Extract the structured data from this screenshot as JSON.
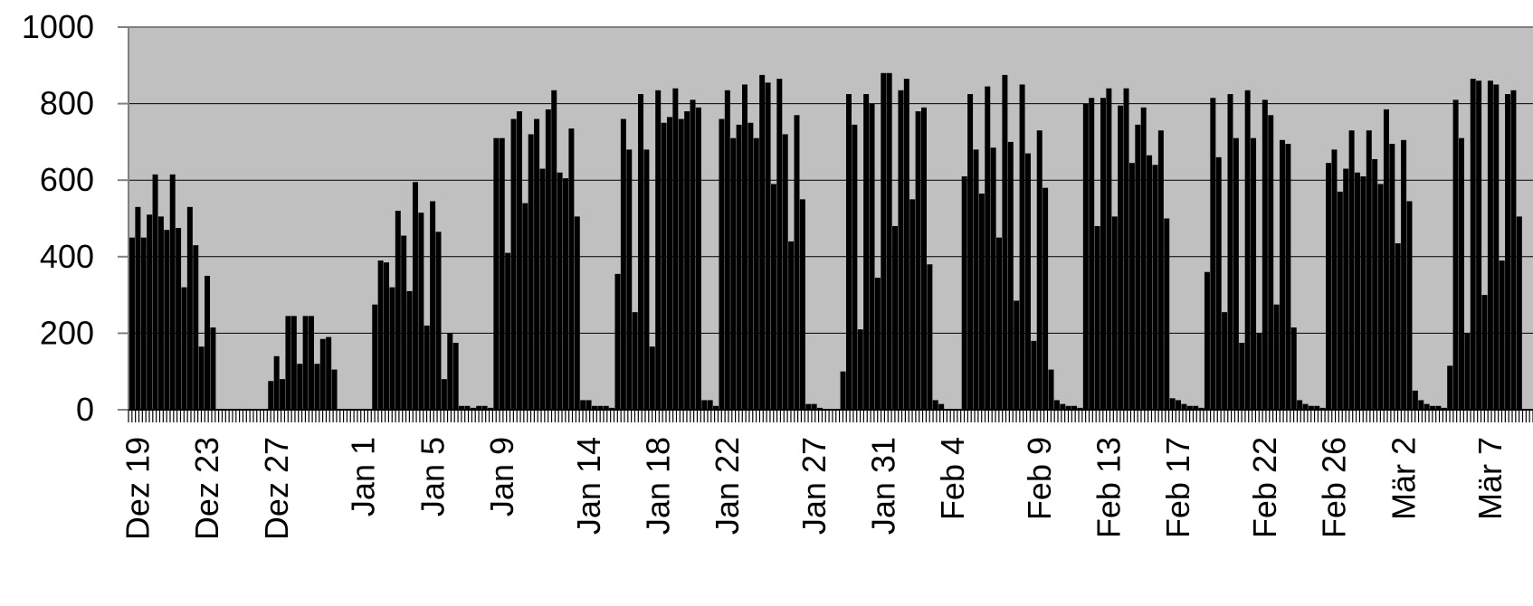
{
  "chart_data": {
    "type": "bar",
    "title": "",
    "xlabel": "",
    "ylabel": "",
    "ylim": [
      0,
      1000
    ],
    "yticks": [
      0,
      200,
      400,
      600,
      800,
      1000
    ],
    "grid": true,
    "legend": "none",
    "colors": {
      "plot_bg": "#c0c0c0",
      "bar": "#000000",
      "grid": "#000000",
      "axis": "#808080"
    },
    "x_tick_labels": [
      "Dez 19",
      "Dez 23",
      "Dez 27",
      "Jan 1",
      "Jan 5",
      "Jan 9",
      "Jan 14",
      "Jan 18",
      "Jan 22",
      "Jan 27",
      "Jan 31",
      "Feb 4",
      "Feb 9",
      "Feb 13",
      "Feb 17",
      "Feb 22",
      "Feb 26",
      "Mär 2",
      "Mär 7"
    ],
    "x_range": [
      "Dez 19",
      "Mär 9"
    ],
    "days": [
      {
        "date": "Dez 19",
        "peaks": [
          450,
          530,
          450
        ]
      },
      {
        "date": "Dez 20",
        "peaks": [
          510,
          615,
          505
        ]
      },
      {
        "date": "Dez 21",
        "peaks": [
          470,
          615,
          475
        ]
      },
      {
        "date": "Dez 22",
        "peaks": [
          320,
          530,
          430
        ]
      },
      {
        "date": "Dez 23",
        "peaks": [
          165,
          350,
          215
        ]
      },
      {
        "date": "Dez 24",
        "peaks": [
          0,
          0,
          0
        ]
      },
      {
        "date": "Dez 25",
        "peaks": [
          0,
          0,
          0
        ]
      },
      {
        "date": "Dez 26",
        "peaks": [
          0,
          0,
          0
        ]
      },
      {
        "date": "Dez 27",
        "peaks": [
          75,
          140,
          80
        ]
      },
      {
        "date": "Dez 28",
        "peaks": [
          245,
          245,
          120
        ]
      },
      {
        "date": "Dez 29",
        "peaks": [
          245,
          245,
          120
        ]
      },
      {
        "date": "Dez 30",
        "peaks": [
          185,
          190,
          105
        ]
      },
      {
        "date": "Dez 31",
        "peaks": [
          0,
          0,
          0
        ]
      },
      {
        "date": "Jan 1",
        "peaks": [
          0,
          0,
          0
        ]
      },
      {
        "date": "Jan 2",
        "peaks": [
          275,
          390,
          385
        ]
      },
      {
        "date": "Jan 3",
        "peaks": [
          320,
          520,
          455
        ]
      },
      {
        "date": "Jan 4",
        "peaks": [
          310,
          595,
          515
        ]
      },
      {
        "date": "Jan 5",
        "peaks": [
          220,
          545,
          465
        ]
      },
      {
        "date": "Jan 6",
        "peaks": [
          80,
          200,
          175
        ]
      },
      {
        "date": "Jan 7",
        "peaks": [
          10,
          10,
          5
        ]
      },
      {
        "date": "Jan 8",
        "peaks": [
          10,
          10,
          5
        ]
      },
      {
        "date": "Jan 9",
        "peaks": [
          710,
          710,
          410
        ]
      },
      {
        "date": "Jan 10",
        "peaks": [
          760,
          780,
          540
        ]
      },
      {
        "date": "Jan 11",
        "peaks": [
          720,
          760,
          630
        ]
      },
      {
        "date": "Jan 12",
        "peaks": [
          785,
          835,
          620
        ]
      },
      {
        "date": "Jan 13",
        "peaks": [
          605,
          735,
          505
        ]
      },
      {
        "date": "Jan 14",
        "peaks": [
          25,
          25,
          10
        ]
      },
      {
        "date": "Jan 15",
        "peaks": [
          10,
          10,
          5
        ]
      },
      {
        "date": "Jan 16",
        "peaks": [
          355,
          760,
          680
        ]
      },
      {
        "date": "Jan 17",
        "peaks": [
          255,
          825,
          680
        ]
      },
      {
        "date": "Jan 18",
        "peaks": [
          165,
          835,
          750
        ]
      },
      {
        "date": "Jan 19",
        "peaks": [
          765,
          840,
          760
        ]
      },
      {
        "date": "Jan 20",
        "peaks": [
          780,
          810,
          790
        ]
      },
      {
        "date": "Jan 21",
        "peaks": [
          25,
          25,
          10
        ]
      },
      {
        "date": "Jan 22",
        "peaks": [
          760,
          835,
          710
        ]
      },
      {
        "date": "Jan 23",
        "peaks": [
          745,
          850,
          750
        ]
      },
      {
        "date": "Jan 24",
        "peaks": [
          710,
          875,
          855
        ]
      },
      {
        "date": "Jan 25",
        "peaks": [
          590,
          865,
          720
        ]
      },
      {
        "date": "Jan 26",
        "peaks": [
          440,
          770,
          550
        ]
      },
      {
        "date": "Jan 27",
        "peaks": [
          15,
          15,
          5
        ]
      },
      {
        "date": "Jan 28",
        "peaks": [
          0,
          0,
          0
        ]
      },
      {
        "date": "Jan 29",
        "peaks": [
          100,
          825,
          745
        ]
      },
      {
        "date": "Jan 30",
        "peaks": [
          210,
          825,
          800
        ]
      },
      {
        "date": "Jan 31",
        "peaks": [
          345,
          880,
          880
        ]
      },
      {
        "date": "Feb 1",
        "peaks": [
          480,
          835,
          865
        ]
      },
      {
        "date": "Feb 2",
        "peaks": [
          550,
          780,
          790
        ]
      },
      {
        "date": "Feb 3",
        "peaks": [
          380,
          25,
          15
        ]
      },
      {
        "date": "Feb 4",
        "peaks": [
          0,
          0,
          0
        ]
      },
      {
        "date": "Feb 5",
        "peaks": [
          610,
          825,
          680
        ]
      },
      {
        "date": "Feb 6",
        "peaks": [
          565,
          845,
          685
        ]
      },
      {
        "date": "Feb 7",
        "peaks": [
          450,
          875,
          700
        ]
      },
      {
        "date": "Feb 8",
        "peaks": [
          285,
          850,
          670
        ]
      },
      {
        "date": "Feb 9",
        "peaks": [
          180,
          730,
          580
        ]
      },
      {
        "date": "Feb 10",
        "peaks": [
          105,
          25,
          15
        ]
      },
      {
        "date": "Feb 11",
        "peaks": [
          10,
          10,
          5
        ]
      },
      {
        "date": "Feb 12",
        "peaks": [
          800,
          815,
          480
        ]
      },
      {
        "date": "Feb 13",
        "peaks": [
          815,
          840,
          505
        ]
      },
      {
        "date": "Feb 14",
        "peaks": [
          795,
          840,
          645
        ]
      },
      {
        "date": "Feb 15",
        "peaks": [
          745,
          790,
          665
        ]
      },
      {
        "date": "Feb 16",
        "peaks": [
          640,
          730,
          500
        ]
      },
      {
        "date": "Feb 17",
        "peaks": [
          30,
          25,
          15
        ]
      },
      {
        "date": "Feb 18",
        "peaks": [
          10,
          10,
          5
        ]
      },
      {
        "date": "Feb 19",
        "peaks": [
          360,
          815,
          660
        ]
      },
      {
        "date": "Feb 20",
        "peaks": [
          255,
          825,
          710
        ]
      },
      {
        "date": "Feb 21",
        "peaks": [
          175,
          835,
          710
        ]
      },
      {
        "date": "Feb 22",
        "peaks": [
          200,
          810,
          770
        ]
      },
      {
        "date": "Feb 23",
        "peaks": [
          275,
          705,
          695
        ]
      },
      {
        "date": "Feb 24",
        "peaks": [
          215,
          25,
          15
        ]
      },
      {
        "date": "Feb 25",
        "peaks": [
          10,
          10,
          5
        ]
      },
      {
        "date": "Feb 26",
        "peaks": [
          645,
          680,
          570
        ]
      },
      {
        "date": "Feb 27",
        "peaks": [
          630,
          730,
          620
        ]
      },
      {
        "date": "Feb 28",
        "peaks": [
          610,
          730,
          655
        ]
      },
      {
        "date": "Mär 1",
        "peaks": [
          590,
          785,
          695
        ]
      },
      {
        "date": "Mär 2",
        "peaks": [
          435,
          705,
          545
        ]
      },
      {
        "date": "Mär 3",
        "peaks": [
          50,
          25,
          15
        ]
      },
      {
        "date": "Mär 4",
        "peaks": [
          10,
          10,
          5
        ]
      },
      {
        "date": "Mär 5",
        "peaks": [
          115,
          810,
          710
        ]
      },
      {
        "date": "Mär 6",
        "peaks": [
          200,
          865,
          860
        ]
      },
      {
        "date": "Mär 7",
        "peaks": [
          300,
          860,
          850
        ]
      },
      {
        "date": "Mär 8",
        "peaks": [
          390,
          825,
          835
        ]
      },
      {
        "date": "Mär 9",
        "peaks": [
          505,
          0,
          0
        ]
      }
    ]
  }
}
